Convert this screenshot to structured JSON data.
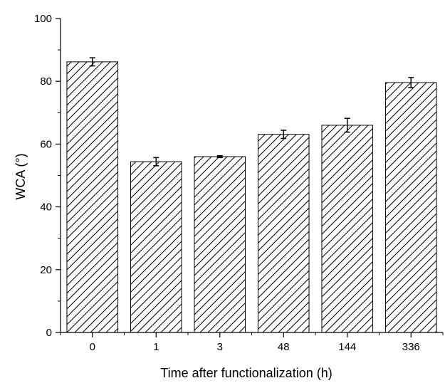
{
  "chart_data": {
    "type": "bar",
    "title": "",
    "xlabel": "Time after functionalization (h)",
    "ylabel": "WCA (°)",
    "categories": [
      "0",
      "1",
      "3",
      "48",
      "144",
      "336"
    ],
    "values": [
      86.2,
      54.4,
      56.0,
      63.1,
      66.0,
      79.6
    ],
    "errors": [
      1.3,
      1.3,
      0.3,
      1.3,
      2.2,
      1.6
    ],
    "ylim": [
      0,
      100
    ],
    "yticks": [
      0,
      20,
      40,
      60,
      80,
      100
    ],
    "bar_fill": "hatched",
    "colors": {
      "bar_stroke": "#000000",
      "hatch": "#000000",
      "background": "#ffffff"
    },
    "grid": false,
    "legend": "none"
  }
}
